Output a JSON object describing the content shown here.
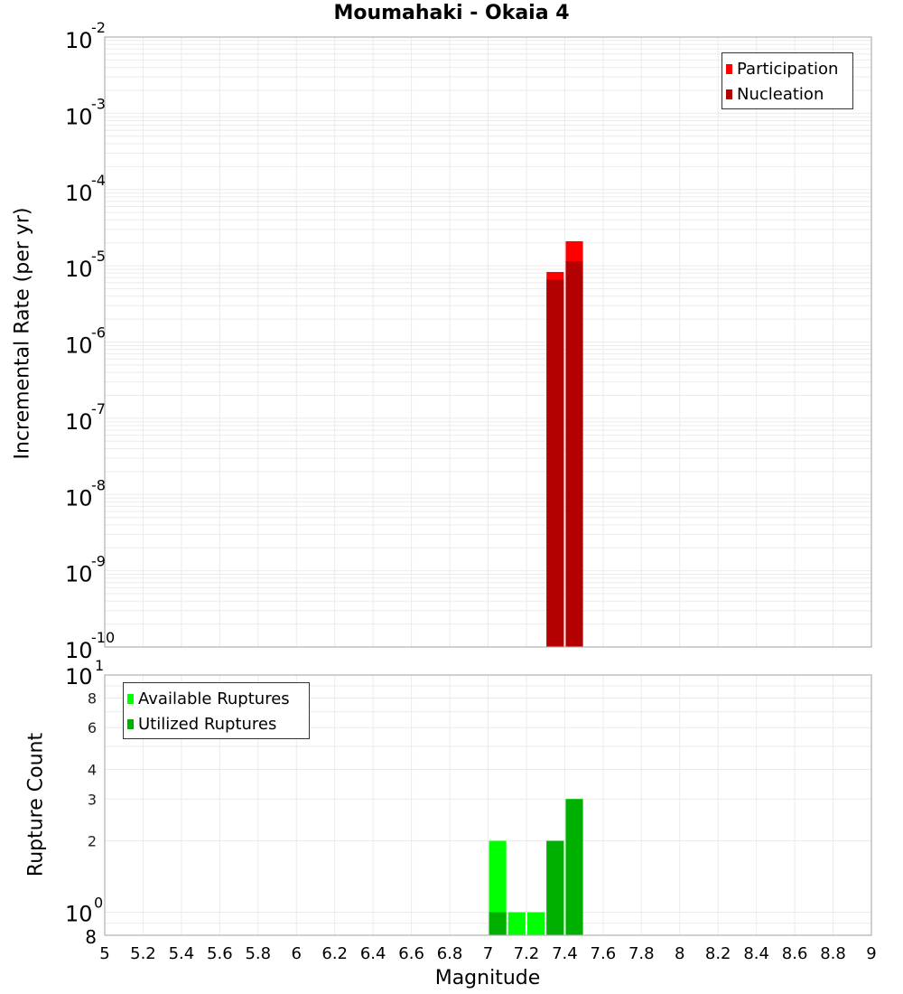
{
  "title": "Moumahaki - Okaia 4",
  "chart_data": [
    {
      "type": "bar",
      "title": "Moumahaki - Okaia 4",
      "xlabel": "Magnitude",
      "ylabel": "Incremental Rate (per yr)",
      "yscale": "log",
      "xlim": [
        5,
        9
      ],
      "ylim": [
        1e-10,
        0.01
      ],
      "grid": true,
      "legend_position": "top-right",
      "x_ticks": [
        "5",
        "5.2",
        "5.4",
        "5.6",
        "5.8",
        "6",
        "6.2",
        "6.4",
        "6.6",
        "6.8",
        "7",
        "7.2",
        "7.4",
        "7.6",
        "7.8",
        "8",
        "8.2",
        "8.4",
        "8.6",
        "8.8",
        "9"
      ],
      "y_ticks": [
        "10^-2",
        "10^-3",
        "10^-4",
        "10^-5",
        "10^-6",
        "10^-7",
        "10^-8",
        "10^-9",
        "10^-10"
      ],
      "x": [
        7.35,
        7.45
      ],
      "series": [
        {
          "name": "Participation",
          "color": "#ff0000",
          "values": [
            8.3e-06,
            2.1e-05
          ]
        },
        {
          "name": "Nucleation",
          "color": "#b30000",
          "values": [
            6.6e-06,
            1.15e-05
          ]
        }
      ]
    },
    {
      "type": "bar",
      "title": "",
      "xlabel": "Magnitude",
      "ylabel": "Rupture Count",
      "yscale": "log",
      "xlim": [
        5,
        9
      ],
      "ylim": [
        0.8,
        10
      ],
      "grid": true,
      "legend_position": "top-left",
      "x_ticks": [
        "5",
        "5.2",
        "5.4",
        "5.6",
        "5.8",
        "6",
        "6.2",
        "6.4",
        "6.6",
        "6.8",
        "7",
        "7.2",
        "7.4",
        "7.6",
        "7.8",
        "8",
        "8.2",
        "8.4",
        "8.6",
        "8.8",
        "9"
      ],
      "y_ticks": [
        "8",
        "10^0",
        "2",
        "3",
        "4",
        "6",
        "8",
        "10^1"
      ],
      "x": [
        7.05,
        7.15,
        7.25,
        7.35,
        7.45
      ],
      "series": [
        {
          "name": "Available Ruptures",
          "color": "#00ff00",
          "values": [
            2,
            1,
            1,
            2,
            3
          ]
        },
        {
          "name": "Utilized Ruptures",
          "color": "#00b000",
          "values": [
            1,
            0,
            0,
            2,
            3
          ]
        }
      ]
    }
  ],
  "top_legend": [
    {
      "label": "Participation",
      "color": "#ff0000"
    },
    {
      "label": "Nucleation",
      "color": "#b30000"
    }
  ],
  "bottom_legend": [
    {
      "label": "Available Ruptures",
      "color": "#00ff00"
    },
    {
      "label": "Utilized Ruptures",
      "color": "#00b000"
    }
  ],
  "axes": {
    "x_label": "Magnitude",
    "top_y_label": "Incremental Rate (per yr)",
    "bottom_y_label": "Rupture Count"
  }
}
